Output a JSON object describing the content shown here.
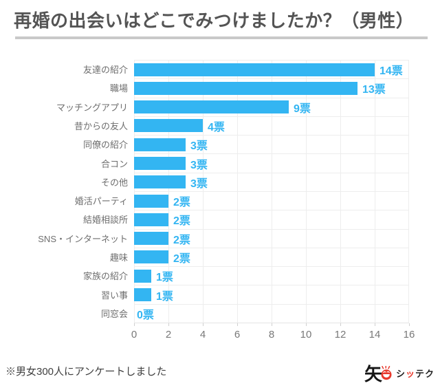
{
  "title": "再婚の出会いはどこでみつけましたか？（男性）",
  "chart_data": {
    "type": "bar",
    "orientation": "horizontal",
    "title": "再婚の出会いはどこでみつけましたか？（男性）",
    "categories": [
      "友達の紹介",
      "職場",
      "マッチングアプリ",
      "昔からの友人",
      "同僚の紹介",
      "合コン",
      "その他",
      "婚活パーティ",
      "結婚相談所",
      "SNS・インターネット",
      "趣味",
      "家族の紹介",
      "習い事",
      "同窓会"
    ],
    "values": [
      14,
      13,
      9,
      4,
      3,
      3,
      3,
      2,
      2,
      2,
      2,
      1,
      1,
      0
    ],
    "value_suffix": "票",
    "xlabel": "",
    "ylabel": "",
    "xlim": [
      0,
      16
    ],
    "x_ticks": [
      0,
      2,
      4,
      6,
      8,
      10,
      12,
      14,
      16
    ],
    "grid": true,
    "legend": false,
    "bar_color": "#33b5f2",
    "value_label_color": "#33b5f2",
    "grid_color": "#ededed"
  },
  "footer": {
    "note": "※男女300人にアンケートしました",
    "logo": {
      "kanji": "矢",
      "face_icon": "red-smiley-face-icon",
      "brand_part_1": "シ",
      "brand_part_2": "ッ",
      "brand_part_3": "テク",
      "brand_red": "#e8392d"
    }
  }
}
